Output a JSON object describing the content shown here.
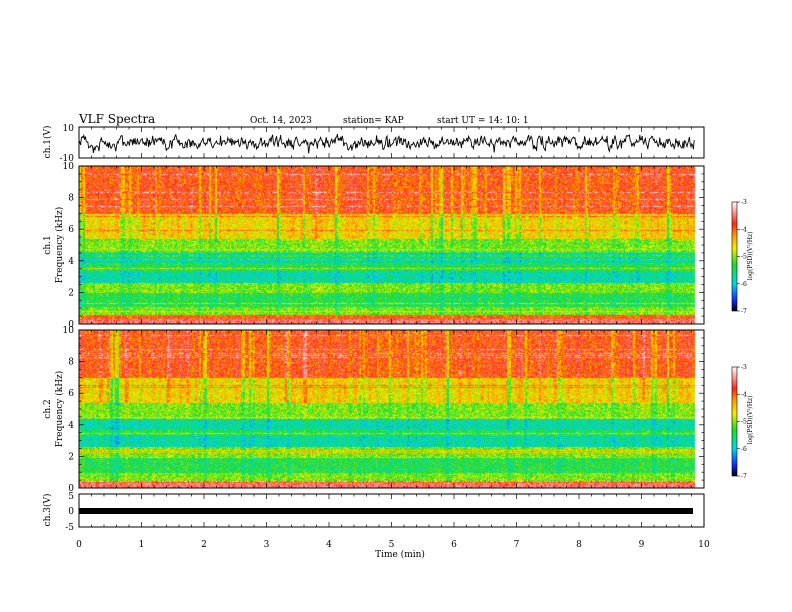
{
  "header": {
    "title": "VLF Spectra",
    "date": "Oct. 14, 2023",
    "station": "station= KAP",
    "start": "start  UT =   14: 10: 1"
  },
  "chart_data": [
    {
      "type": "line",
      "ylabel": "ch.1(V)",
      "ylim": [
        -10,
        10
      ],
      "yticks": [
        "10",
        "-10"
      ],
      "xlim": [
        0,
        10
      ],
      "note": "waveform amplitude, noisy trace around 0 V, data ends near 9.8 min"
    },
    {
      "type": "heatmap",
      "ylabel_line1": "ch.1",
      "ylabel_line2": "Frequency (kHz)",
      "ylim": [
        0,
        10
      ],
      "yticks": [
        "0",
        "2",
        "4",
        "6",
        "8",
        "10"
      ],
      "xlim": [
        0,
        10
      ],
      "bands_khz": [
        {
          "from": 0,
          "to": 0.6,
          "level": "high"
        },
        {
          "from": 0.6,
          "to": 1.1,
          "level": "mid"
        },
        {
          "from": 1.1,
          "to": 2.0,
          "level": "mid-low"
        },
        {
          "from": 2.0,
          "to": 2.6,
          "level": "mid"
        },
        {
          "from": 2.6,
          "to": 3.4,
          "level": "low"
        },
        {
          "from": 3.4,
          "to": 3.9,
          "level": "mid-low"
        },
        {
          "from": 3.9,
          "to": 4.6,
          "level": "low"
        },
        {
          "from": 4.6,
          "to": 5.4,
          "level": "mid"
        },
        {
          "from": 5.4,
          "to": 7.0,
          "level": "mid-high"
        },
        {
          "from": 7.0,
          "to": 10.0,
          "level": "high"
        }
      ],
      "colorbar": {
        "label": "log(PSD)(V²/Hz)",
        "ticks": [
          "-3",
          "-4",
          "-5",
          "-6",
          "-7"
        ],
        "range": [
          -7,
          -3
        ]
      }
    },
    {
      "type": "heatmap",
      "ylabel_line1": "ch.2",
      "ylabel_line2": "Frequency (kHz)",
      "ylim": [
        0,
        10
      ],
      "yticks": [
        "0",
        "2",
        "4",
        "6",
        "8",
        "10"
      ],
      "xlim": [
        0,
        10
      ],
      "bands_khz": [
        {
          "from": 0,
          "to": 0.5,
          "level": "high"
        },
        {
          "from": 0.5,
          "to": 1.0,
          "level": "mid"
        },
        {
          "from": 1.0,
          "to": 2.0,
          "level": "mid-low"
        },
        {
          "from": 2.0,
          "to": 2.6,
          "level": "mid"
        },
        {
          "from": 2.6,
          "to": 3.3,
          "level": "low"
        },
        {
          "from": 3.3,
          "to": 3.7,
          "level": "mid-low"
        },
        {
          "from": 3.7,
          "to": 4.4,
          "level": "low"
        },
        {
          "from": 4.4,
          "to": 5.4,
          "level": "mid"
        },
        {
          "from": 5.4,
          "to": 7.0,
          "level": "mid-high"
        },
        {
          "from": 7.0,
          "to": 10.0,
          "level": "high"
        }
      ],
      "colorbar": {
        "label": "log(PSD)(V²/Hz)",
        "ticks": [
          "-3",
          "-4",
          "-5",
          "-6",
          "-7"
        ],
        "range": [
          -7,
          -3
        ]
      }
    },
    {
      "type": "line",
      "ylabel": "ch.3(V)",
      "ylim": [
        -5,
        5
      ],
      "yticks": [
        "5",
        "0",
        "-5"
      ],
      "xlim": [
        0,
        10
      ],
      "xticks": [
        "0",
        "1",
        "2",
        "3",
        "4",
        "5",
        "6",
        "7",
        "8",
        "9",
        "10"
      ],
      "xlabel": "Time (min)",
      "note": "flat thick trace near 0 V"
    }
  ],
  "colors": {
    "red": "#ff2a1a",
    "orange": "#ff9a00",
    "yellow": "#f0f000",
    "green": "#22dd22",
    "cyan": "#00d8e8",
    "blue": "#1a50ff",
    "black": "#000000"
  }
}
